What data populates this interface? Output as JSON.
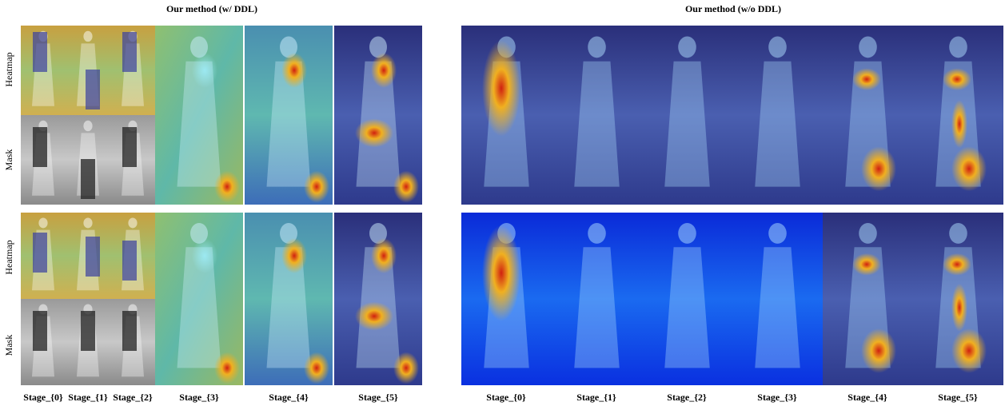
{
  "left": {
    "title": "Our method (w/ DDL)",
    "row_labels": [
      "Heatmap",
      "Mask",
      "Heatmap",
      "Mask"
    ],
    "stages": [
      "Stage_{0}",
      "Stage_{1}",
      "Stage_{2}",
      "Stage_{3}",
      "Stage_{4}",
      "Stage_{5}"
    ]
  },
  "right": {
    "title": "Our method (w/o DDL)",
    "stages": [
      "Stage_{0}",
      "Stage_{1}",
      "Stage_{2}",
      "Stage_{3}",
      "Stage_{4}",
      "Stage_{5}"
    ]
  }
}
